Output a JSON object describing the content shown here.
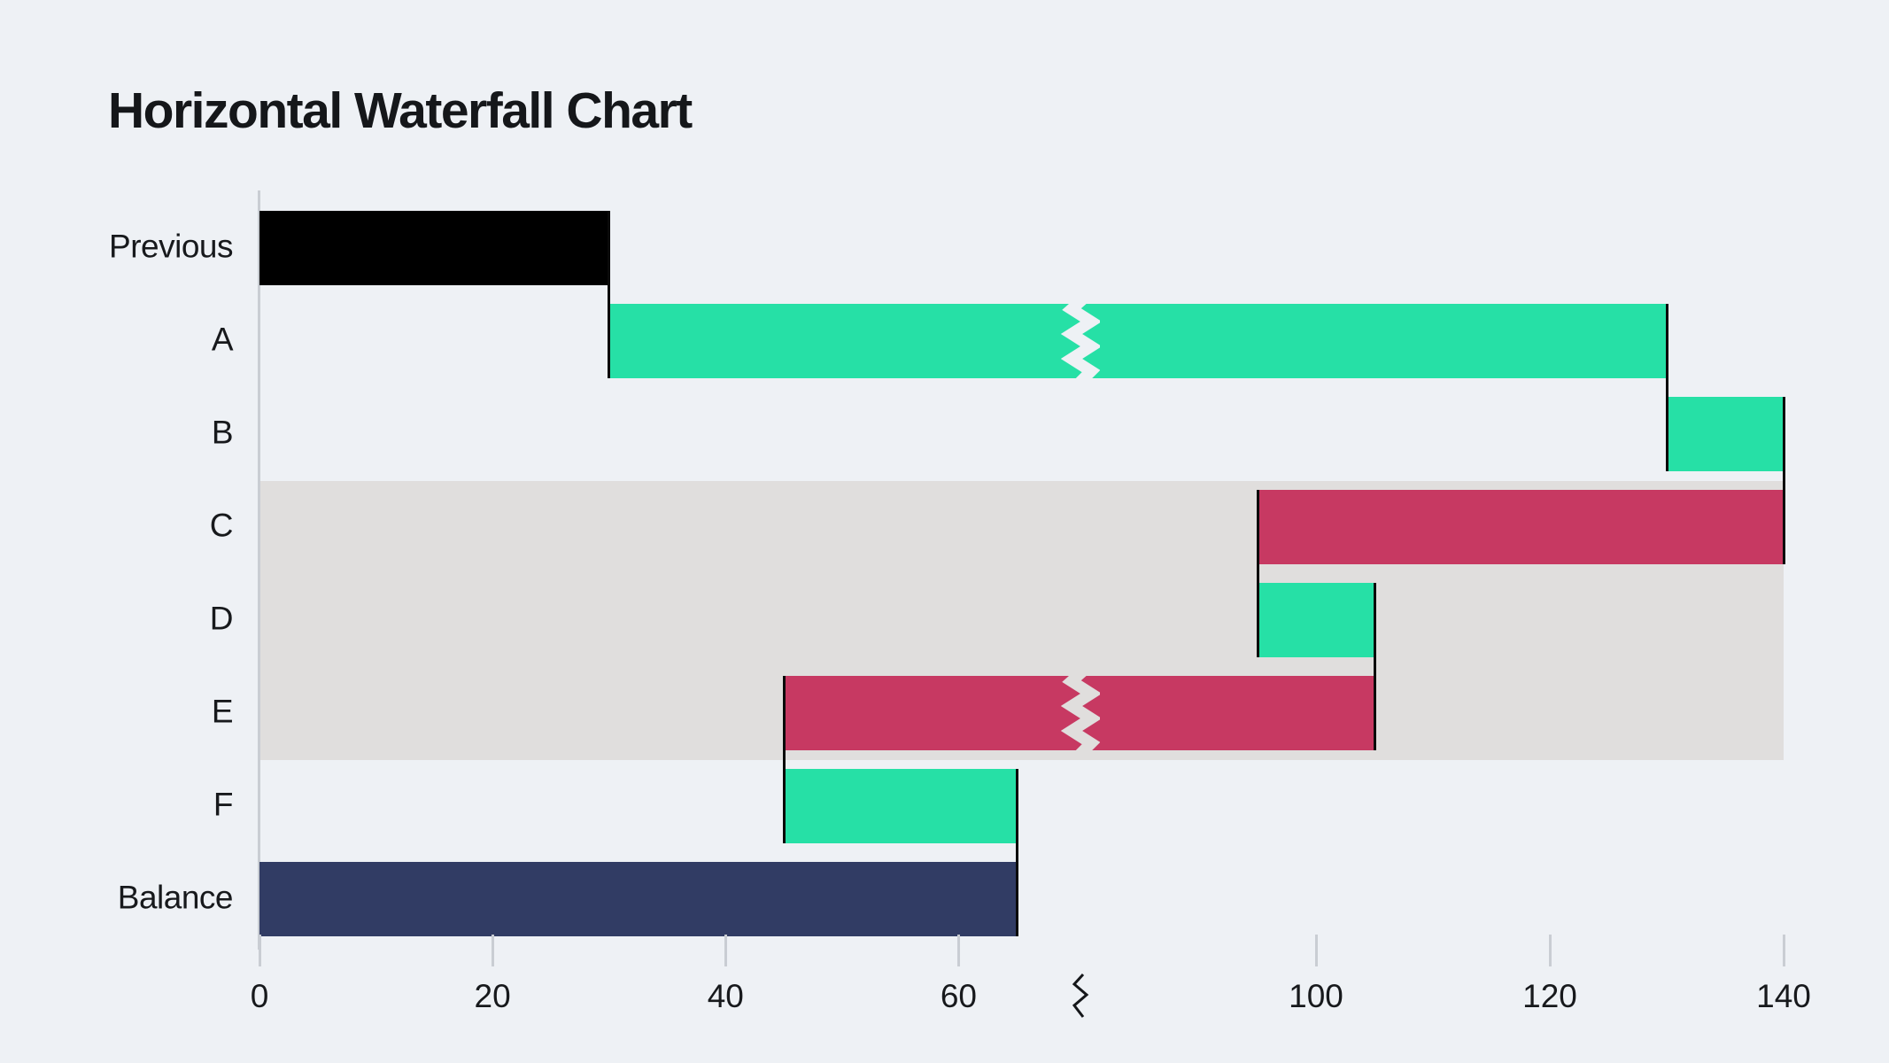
{
  "title": "Horizontal Waterfall Chart",
  "colors": {
    "background": "#EEF1F5",
    "highlight_band": "#E0DEDD",
    "increase": "#26E0A6",
    "decrease": "#C73962",
    "base": "#000000",
    "total": "#313C64",
    "axis": "#C9CDD3",
    "connector": "#0A0A0A",
    "text": "#17191C",
    "break_glyph": "#15171A"
  },
  "chart_data": {
    "type": "bar",
    "subtype": "horizontal-waterfall",
    "title": "Horizontal Waterfall Chart",
    "orientation": "horizontal",
    "categories": [
      "Previous",
      "A",
      "B",
      "C",
      "D",
      "E",
      "F",
      "Balance"
    ],
    "bars": [
      {
        "label": "Previous",
        "start": 0,
        "end": 30,
        "change": 30,
        "kind": "base"
      },
      {
        "label": "A",
        "start": 30,
        "end": 130,
        "change": 100,
        "kind": "increase"
      },
      {
        "label": "B",
        "start": 130,
        "end": 140,
        "change": 10,
        "kind": "increase"
      },
      {
        "label": "C",
        "start": 140,
        "end": 95,
        "change": -45,
        "kind": "decrease"
      },
      {
        "label": "D",
        "start": 95,
        "end": 105,
        "change": 10,
        "kind": "increase"
      },
      {
        "label": "E",
        "start": 105,
        "end": 45,
        "change": -60,
        "kind": "decrease"
      },
      {
        "label": "F",
        "start": 45,
        "end": 65,
        "change": 20,
        "kind": "increase"
      },
      {
        "label": "Balance",
        "start": 0,
        "end": 65,
        "change": 65,
        "kind": "total"
      }
    ],
    "x_ticks": [
      0,
      20,
      40,
      60,
      100,
      120,
      140
    ],
    "x_axis_break": {
      "hidden_range": [
        70,
        80
      ]
    },
    "highlighted_rows": [
      "C",
      "D",
      "E"
    ],
    "xlim_segments": [
      [
        0,
        70
      ],
      [
        80,
        140
      ]
    ],
    "grid": false,
    "legend": false
  }
}
